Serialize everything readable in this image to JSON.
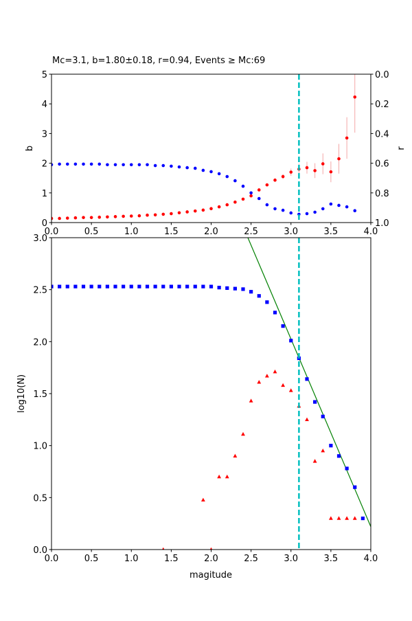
{
  "chart_data": [
    {
      "type": "scatter",
      "title": "Mc=3.1, b=1.80±0.18, r=0.94, Events ≥ Mc:69",
      "y_label": "b",
      "y2_label": "r",
      "xlim": [
        0,
        4
      ],
      "ylim": [
        0,
        5
      ],
      "y2lim": [
        1.0,
        0.0
      ],
      "xticks": [
        {
          "value": 0,
          "label": "0.0"
        },
        {
          "value": 0.5,
          "label": "0.5"
        },
        {
          "value": 1,
          "label": "1.0"
        },
        {
          "value": 1.5,
          "label": "1.5"
        },
        {
          "value": 2,
          "label": "2.0"
        },
        {
          "value": 2.5,
          "label": "2.5"
        },
        {
          "value": 3,
          "label": "3.0"
        },
        {
          "value": 3.5,
          "label": "3.5"
        },
        {
          "value": 4,
          "label": "4.0"
        }
      ],
      "yticks": [
        0,
        1,
        2,
        3,
        4,
        5
      ],
      "y2ticks": [
        {
          "value": 0,
          "label": "0.0"
        },
        {
          "value": 0.2,
          "label": "0.2"
        },
        {
          "value": 0.4,
          "label": "0.4"
        },
        {
          "value": 0.6,
          "label": "0.6"
        },
        {
          "value": 0.8,
          "label": "0.8"
        },
        {
          "value": 1,
          "label": "1.0"
        }
      ],
      "vlines": [
        {
          "x": 3.1,
          "color": "#00bfbf"
        }
      ],
      "series": [
        {
          "color": "blue",
          "marker": "circle",
          "axis": "y2",
          "x": [
            0,
            0.1,
            0.2,
            0.3,
            0.4,
            0.5,
            0.6,
            0.7,
            0.8,
            0.9,
            1,
            1.1,
            1.2,
            1.3,
            1.4,
            1.5,
            1.6,
            1.7,
            1.8,
            1.9,
            2,
            2.1,
            2.2,
            2.3,
            2.4,
            2.5,
            2.6,
            2.7,
            2.8,
            2.9,
            3,
            3.1,
            3.2,
            3.3,
            3.4,
            3.5,
            3.6,
            3.7,
            3.8
          ],
          "values": [
            0.61,
            0.606,
            0.606,
            0.606,
            0.606,
            0.606,
            0.606,
            0.61,
            0.61,
            0.61,
            0.61,
            0.61,
            0.61,
            0.616,
            0.616,
            0.62,
            0.625,
            0.63,
            0.634,
            0.648,
            0.657,
            0.671,
            0.69,
            0.718,
            0.755,
            0.8,
            0.838,
            0.88,
            0.907,
            0.917,
            0.935,
            0.944,
            0.94,
            0.93,
            0.907,
            0.875,
            0.884,
            0.894,
            0.92
          ]
        },
        {
          "color": "red",
          "marker": "circle",
          "error_color": "#f4a6a6",
          "x": [
            0,
            0.1,
            0.2,
            0.3,
            0.4,
            0.5,
            0.6,
            0.7,
            0.8,
            0.9,
            1,
            1.1,
            1.2,
            1.3,
            1.4,
            1.5,
            1.6,
            1.7,
            1.8,
            1.9,
            2,
            2.1,
            2.2,
            2.3,
            2.4,
            2.5,
            2.6,
            2.7,
            2.8,
            2.9,
            3,
            3.1,
            3.2,
            3.3,
            3.4,
            3.5,
            3.6,
            3.7,
            3.8
          ],
          "values": [
            0.14,
            0.14,
            0.15,
            0.16,
            0.17,
            0.17,
            0.18,
            0.19,
            0.2,
            0.21,
            0.22,
            0.23,
            0.25,
            0.26,
            0.28,
            0.3,
            0.33,
            0.36,
            0.39,
            0.42,
            0.47,
            0.53,
            0.6,
            0.69,
            0.79,
            0.9,
            1.1,
            1.27,
            1.43,
            1.55,
            1.7,
            1.8,
            1.85,
            1.75,
            1.98,
            1.71,
            2.15,
            2.85,
            4.23
          ],
          "errors": [
            0.01,
            0.01,
            0.01,
            0.01,
            0.01,
            0.01,
            0.01,
            0.01,
            0.01,
            0.01,
            0.01,
            0.01,
            0.01,
            0.01,
            0.01,
            0.01,
            0.01,
            0.01,
            0.01,
            0.01,
            0.01,
            0.01,
            0.02,
            0.02,
            0.02,
            0.03,
            0.04,
            0.05,
            0.06,
            0.08,
            0.12,
            0.18,
            0.2,
            0.25,
            0.35,
            0.35,
            0.5,
            0.7,
            1.2
          ]
        }
      ]
    },
    {
      "type": "scatter",
      "x_label": "magitude",
      "y_label": "log10(N)",
      "xlim": [
        0,
        4
      ],
      "ylim": [
        0,
        3
      ],
      "xticks": [
        {
          "value": 0,
          "label": "0.0"
        },
        {
          "value": 0.5,
          "label": "0.5"
        },
        {
          "value": 1,
          "label": "1.0"
        },
        {
          "value": 1.5,
          "label": "1.5"
        },
        {
          "value": 2,
          "label": "2.0"
        },
        {
          "value": 2.5,
          "label": "2.5"
        },
        {
          "value": 3,
          "label": "3.0"
        },
        {
          "value": 3.5,
          "label": "3.5"
        },
        {
          "value": 4,
          "label": "4.0"
        }
      ],
      "yticks": [
        {
          "value": 0,
          "label": "0.0"
        },
        {
          "value": 0.5,
          "label": "0.5"
        },
        {
          "value": 1,
          "label": "1.0"
        },
        {
          "value": 1.5,
          "label": "1.5"
        },
        {
          "value": 2,
          "label": "2.0"
        },
        {
          "value": 2.5,
          "label": "2.5"
        },
        {
          "value": 3,
          "label": "3.0"
        }
      ],
      "vlines": [
        {
          "x": 3.1,
          "color": "#00bfbf"
        }
      ],
      "series": [
        {
          "color": "green",
          "kind": "line",
          "x": [
            2.46,
            4.0
          ],
          "values": [
            3.0,
            0.22
          ]
        },
        {
          "color": "blue",
          "marker": "square",
          "x": [
            0,
            0.1,
            0.2,
            0.3,
            0.4,
            0.5,
            0.6,
            0.7,
            0.8,
            0.9,
            1,
            1.1,
            1.2,
            1.3,
            1.4,
            1.5,
            1.6,
            1.7,
            1.8,
            1.9,
            2,
            2.1,
            2.2,
            2.3,
            2.4,
            2.5,
            2.6,
            2.7,
            2.8,
            2.9,
            3,
            3.1,
            3.2,
            3.3,
            3.4,
            3.5,
            3.6,
            3.7,
            3.8,
            3.9
          ],
          "values": [
            2.53,
            2.53,
            2.53,
            2.53,
            2.53,
            2.53,
            2.53,
            2.53,
            2.53,
            2.53,
            2.53,
            2.53,
            2.53,
            2.53,
            2.53,
            2.53,
            2.53,
            2.53,
            2.53,
            2.53,
            2.53,
            2.52,
            2.515,
            2.51,
            2.505,
            2.48,
            2.44,
            2.38,
            2.28,
            2.15,
            2.01,
            1.84,
            1.64,
            1.42,
            1.28,
            1.0,
            0.9,
            0.78,
            0.6,
            0.3
          ]
        },
        {
          "color": "red",
          "marker": "triangle",
          "x": [
            1.4,
            1.5,
            1.6,
            1.7,
            1.8,
            1.9,
            2,
            2.1,
            2.2,
            2.3,
            2.4,
            2.5,
            2.6,
            2.7,
            2.8,
            2.9,
            3,
            3.1,
            3.2,
            3.3,
            3.4,
            3.5,
            3.6,
            3.7,
            3.8
          ],
          "values": [
            0.0,
            null,
            null,
            null,
            null,
            0.477,
            0.0,
            0.7,
            0.7,
            0.9,
            1.11,
            1.43,
            1.61,
            1.67,
            1.71,
            1.58,
            1.53,
            1.38,
            1.25,
            0.85,
            0.95,
            0.3,
            0.3,
            0.3,
            0.3
          ]
        }
      ]
    }
  ]
}
